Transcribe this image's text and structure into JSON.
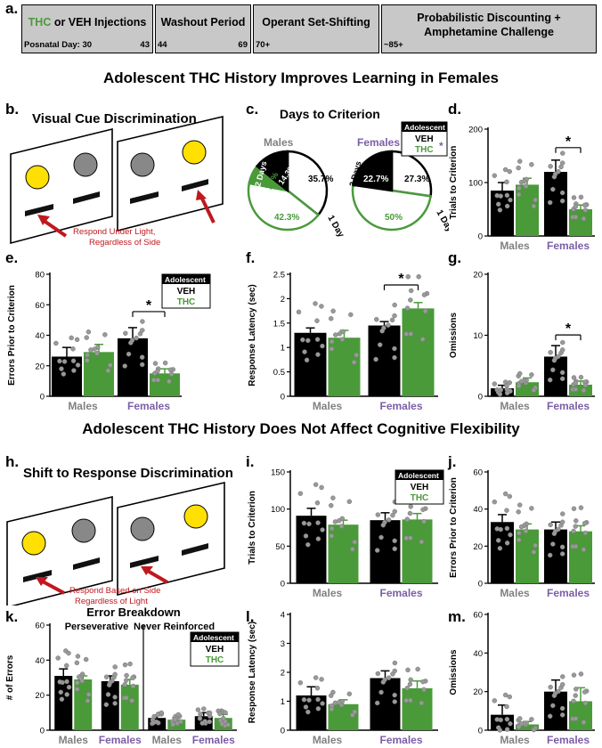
{
  "colors": {
    "veh": "#000000",
    "thc": "#4a9a3a",
    "males_label": "#808080",
    "females_label": "#7b5ea7",
    "red": "#c0181e",
    "panel_gray": "#c8c8c8"
  },
  "panel_letters": [
    "a.",
    "b.",
    "c.",
    "d.",
    "e.",
    "f.",
    "g.",
    "h.",
    "i.",
    "j.",
    "k.",
    "l.",
    "m."
  ],
  "timeline": {
    "box1": {
      "prefix": "THC",
      "suffix": " or VEH Injections",
      "label": "Posnatal Day: 30",
      "end": "43"
    },
    "box2": {
      "title": "Washout Period",
      "start": "44",
      "end": "69"
    },
    "box3": {
      "title": "Operant Set-Shifting",
      "start": "70+"
    },
    "box4": {
      "title_line1": "Probabilistic Discounting +",
      "title_line2": "Amphetamine Challenge",
      "start": "~85+"
    }
  },
  "headers": {
    "section1": "Adolescent THC History Improves Learning in Females",
    "section2": "Adolescent THC History Does Not Affect Cognitive Flexibility"
  },
  "schematic_b": {
    "title": "Visual Cue Discrimination",
    "caption_line1": "Respond Under Light,",
    "caption_line2": "Regardless of Side"
  },
  "schematic_h": {
    "title": "Shift to Response Discrimination",
    "caption_line1": "Respond Based on Side",
    "caption_line2": "Regardless of Light"
  },
  "legend": {
    "title": "Adolescent",
    "veh": "VEH",
    "thc": "THC",
    "star": "*"
  },
  "groups": [
    "Males",
    "Females"
  ],
  "sig": "*",
  "chart_data": [
    {
      "panel": "c",
      "type": "pie",
      "title": "Days to Criterion",
      "pies": [
        {
          "group": "Males",
          "slices": [
            {
              "label": "1 Day",
              "veh": 35.7,
              "thc": 42.3
            },
            {
              "label": "2 Days",
              "veh": 14.3,
              "thc": 7.7
            }
          ],
          "labels": {
            "veh_one": "35.7%",
            "veh_two": "14.3%",
            "thc_one": "42.3%",
            "thc_two": "7.7%",
            "one_day": "1 Day",
            "two_days": "2 Days"
          }
        },
        {
          "group": "Females",
          "slices": [
            {
              "label": "1 Day",
              "veh": 27.3,
              "thc": 50
            },
            {
              "label": "2 Days",
              "veh": 22.7,
              "thc": 0
            }
          ],
          "labels": {
            "veh_one": "27.3%",
            "veh_two": "22.7%",
            "thc_one": "50%",
            "one_day": "1 Day",
            "two_days": "2 Days"
          }
        }
      ]
    },
    {
      "panel": "d",
      "type": "bar",
      "ylabel": "Trials to Criterion",
      "ylim": [
        0,
        200
      ],
      "ticks": [
        0,
        100,
        200
      ],
      "categories": [
        "Males",
        "Females"
      ],
      "series": [
        {
          "name": "VEH",
          "values": [
            85,
            120
          ],
          "sem": [
            15,
            22
          ]
        },
        {
          "name": "THC",
          "values": [
            96,
            50
          ],
          "sem": [
            12,
            8
          ]
        }
      ],
      "significance": "Females"
    },
    {
      "panel": "e",
      "type": "bar",
      "ylabel": "Errors Prior  to Criterion",
      "ylim": [
        0,
        80
      ],
      "ticks": [
        0,
        20,
        40,
        60,
        80
      ],
      "categories": [
        "Males",
        "Females"
      ],
      "series": [
        {
          "name": "VEH",
          "values": [
            26,
            38
          ],
          "sem": [
            6,
            7
          ]
        },
        {
          "name": "THC",
          "values": [
            29,
            15
          ],
          "sem": [
            5,
            3
          ]
        }
      ],
      "significance": "Females"
    },
    {
      "panel": "f",
      "type": "bar",
      "ylabel": "Response Latency (sec)",
      "ylim": [
        0,
        2.5
      ],
      "ticks": [
        0,
        0.5,
        1,
        1.5,
        2,
        2.5
      ],
      "tick_labels": [
        "0",
        "0.5",
        "1",
        "1.5",
        "2",
        "2.5"
      ],
      "categories": [
        "Males",
        "Females"
      ],
      "series": [
        {
          "name": "VEH",
          "values": [
            1.3,
            1.45
          ],
          "sem": [
            0.1,
            0.08
          ]
        },
        {
          "name": "THC",
          "values": [
            1.2,
            1.8
          ],
          "sem": [
            0.15,
            0.12
          ]
        }
      ],
      "significance": "Females"
    },
    {
      "panel": "g",
      "type": "bar",
      "ylabel": "Omissions",
      "ylim": [
        0,
        20
      ],
      "ticks": [
        0,
        10,
        20
      ],
      "categories": [
        "Males",
        "Females"
      ],
      "series": [
        {
          "name": "VEH",
          "values": [
            1.3,
            6.5
          ],
          "sem": [
            0.5,
            1.8
          ]
        },
        {
          "name": "THC",
          "values": [
            2.3,
            1.9
          ],
          "sem": [
            0.7,
            0.6
          ]
        }
      ],
      "significance": "Females"
    },
    {
      "panel": "i",
      "type": "bar",
      "ylabel": "Trials to Criterion",
      "ylim": [
        0,
        150
      ],
      "ticks": [
        0,
        50,
        100,
        150
      ],
      "categories": [
        "Males",
        "Females"
      ],
      "series": [
        {
          "name": "VEH",
          "values": [
            91,
            85
          ],
          "sem": [
            10,
            10
          ]
        },
        {
          "name": "THC",
          "values": [
            79,
            86
          ],
          "sem": [
            6,
            8
          ]
        }
      ]
    },
    {
      "panel": "j",
      "type": "bar",
      "ylabel": "Errors Prior to Criterion",
      "ylim": [
        0,
        60
      ],
      "ticks": [
        0,
        20,
        40,
        60
      ],
      "categories": [
        "Males",
        "Females"
      ],
      "series": [
        {
          "name": "VEH",
          "values": [
            33,
            29
          ],
          "sem": [
            4,
            4
          ]
        },
        {
          "name": "THC",
          "values": [
            29,
            28
          ],
          "sem": [
            3,
            3
          ]
        }
      ]
    },
    {
      "panel": "k",
      "type": "bar",
      "title": "Error Breakdown",
      "subtitles": [
        "Perseverative",
        "Never Reinforced"
      ],
      "ylabel": "# of Errors",
      "ylim": [
        0,
        60
      ],
      "ticks": [
        0,
        20,
        40,
        60
      ],
      "categories": [
        "Males",
        "Females",
        "Males",
        "Females"
      ],
      "series": [
        {
          "name": "VEH",
          "values": [
            31,
            28,
            7,
            8
          ],
          "sem": [
            4,
            3,
            1.5,
            2
          ]
        },
        {
          "name": "THC",
          "values": [
            29,
            26,
            6,
            7
          ],
          "sem": [
            2,
            3,
            1.2,
            2
          ]
        }
      ]
    },
    {
      "panel": "l",
      "type": "bar",
      "ylabel": "Response Latency (sec)",
      "ylim": [
        0,
        4
      ],
      "ticks": [
        0,
        1,
        2,
        3,
        4
      ],
      "categories": [
        "Males",
        "Females"
      ],
      "series": [
        {
          "name": "VEH",
          "values": [
            1.2,
            1.8
          ],
          "sem": [
            0.3,
            0.25
          ]
        },
        {
          "name": "THC",
          "values": [
            0.9,
            1.45
          ],
          "sem": [
            0.15,
            0.25
          ]
        }
      ]
    },
    {
      "panel": "m",
      "type": "bar",
      "ylabel": "Omissions",
      "ylim": [
        0,
        60
      ],
      "ticks": [
        0,
        20,
        40,
        60
      ],
      "categories": [
        "Males",
        "Females"
      ],
      "series": [
        {
          "name": "VEH",
          "values": [
            8,
            20
          ],
          "sem": [
            5,
            6
          ]
        },
        {
          "name": "THC",
          "values": [
            3,
            15
          ],
          "sem": [
            1.5,
            7
          ]
        }
      ]
    }
  ]
}
